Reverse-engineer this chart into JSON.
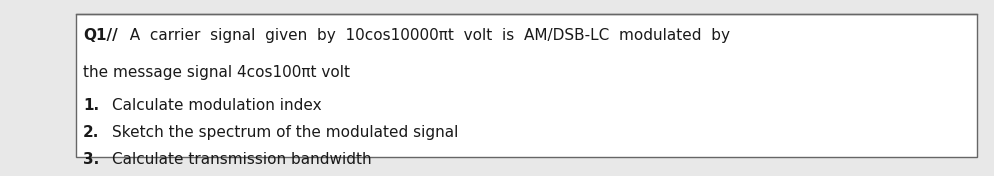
{
  "title_line1": "Q1//  A  carrier  signal  given  by  10cos10000πt  volt  is  AM/DSB-LC  modulated  by",
  "title_line2": "the message signal 4cos100πt volt",
  "items": [
    "Calculate modulation index",
    "Sketch the spectrum of the modulated signal",
    "Calculate transmission bandwidth"
  ],
  "item_numbers": [
    "1.",
    "2.",
    "3."
  ],
  "bg_color": "#e8e8e8",
  "box_bg": "#ffffff",
  "box_edge": "#666666",
  "text_color": "#1a1a1a",
  "font_size_main": 11.0,
  "font_size_items": 11.0
}
